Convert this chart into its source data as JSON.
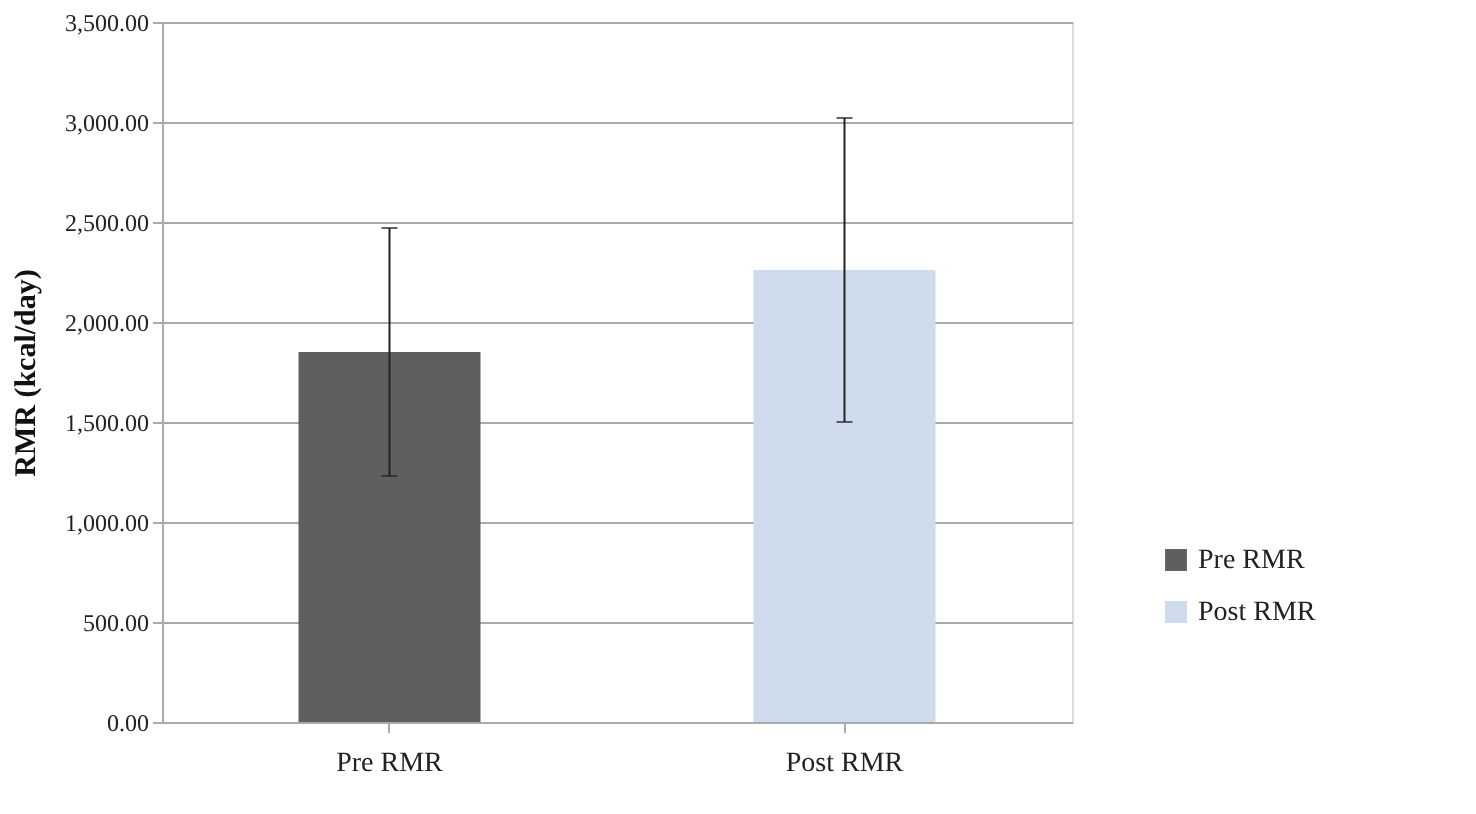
{
  "chart_data": {
    "type": "bar",
    "ylabel": "RMR (kcal/day)",
    "categories": [
      "Pre RMR",
      "Post RMR"
    ],
    "series": [
      {
        "name": "Pre RMR",
        "color": "#5f5f5f",
        "values": [
          1850,
          null
        ],
        "errors": [
          620,
          null
        ]
      },
      {
        "name": "Post RMR",
        "color": "#cfdced",
        "values": [
          null,
          2260
        ],
        "errors": [
          null,
          760
        ]
      }
    ],
    "ylim": [
      0,
      3500
    ],
    "yticks": [
      {
        "value": 0,
        "label": "0.00"
      },
      {
        "value": 500,
        "label": "500.00"
      },
      {
        "value": 1000,
        "label": "1,000.00"
      },
      {
        "value": 1500,
        "label": "1,500.00"
      },
      {
        "value": 2000,
        "label": "2,000.00"
      },
      {
        "value": 2500,
        "label": "2,500.00"
      },
      {
        "value": 3000,
        "label": "3,000.00"
      },
      {
        "value": 3500,
        "label": "3,500.00"
      }
    ],
    "grid": "y",
    "legend": "right"
  }
}
